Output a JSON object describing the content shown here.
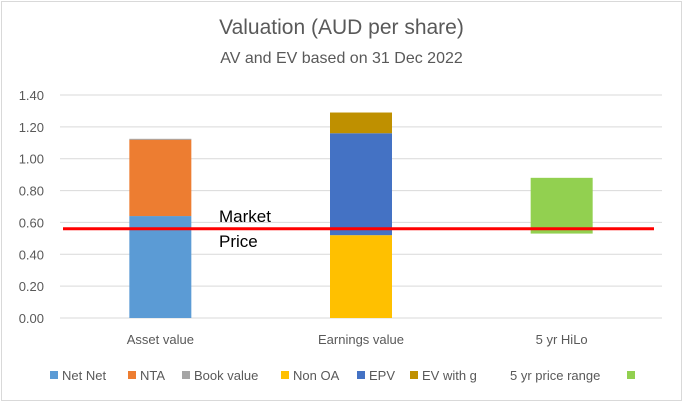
{
  "chart_data": {
    "type": "bar",
    "stacked": true,
    "title": "Valuation (AUD per share)",
    "subtitle": "AV and EV based on 31 Dec 2022",
    "categories": [
      "Asset value",
      "Earnings value",
      "5 yr HiLo"
    ],
    "ylim": [
      0,
      1.4
    ],
    "yticks": [
      "0.00",
      "0.20",
      "0.40",
      "0.60",
      "0.80",
      "1.00",
      "1.20",
      "1.40"
    ],
    "grid": true,
    "legend_position": "bottom",
    "series": [
      {
        "name": "Net Net",
        "color": "#5b9bd5",
        "values": [
          0.64,
          null,
          null
        ],
        "base": [
          0,
          null,
          null
        ]
      },
      {
        "name": "NTA",
        "color": "#ed7d31",
        "values": [
          0.48,
          null,
          null
        ],
        "base": [
          0.64,
          null,
          null
        ]
      },
      {
        "name": "Book value",
        "color": "#a5a5a5",
        "values": [
          0.005,
          null,
          null
        ],
        "base": [
          1.12,
          null,
          null
        ]
      },
      {
        "name": "Non OA",
        "color": "#ffc000",
        "values": [
          null,
          0.52,
          null
        ],
        "base": [
          null,
          0,
          null
        ]
      },
      {
        "name": "EPV",
        "color": "#4472c4",
        "values": [
          null,
          0.64,
          null
        ],
        "base": [
          null,
          0.52,
          null
        ]
      },
      {
        "name": "EV with g",
        "color": "#bf9000",
        "values": [
          null,
          0.13,
          null
        ],
        "base": [
          null,
          1.16,
          null
        ]
      },
      {
        "name": "5 yr price range",
        "color": "#92d050",
        "values": [
          null,
          null,
          0.35
        ],
        "base": [
          null,
          null,
          0.53
        ]
      }
    ],
    "reference_line": {
      "label_line1": "Market",
      "label_line2": "Price",
      "value": 0.56,
      "color": "#ff0000"
    }
  }
}
